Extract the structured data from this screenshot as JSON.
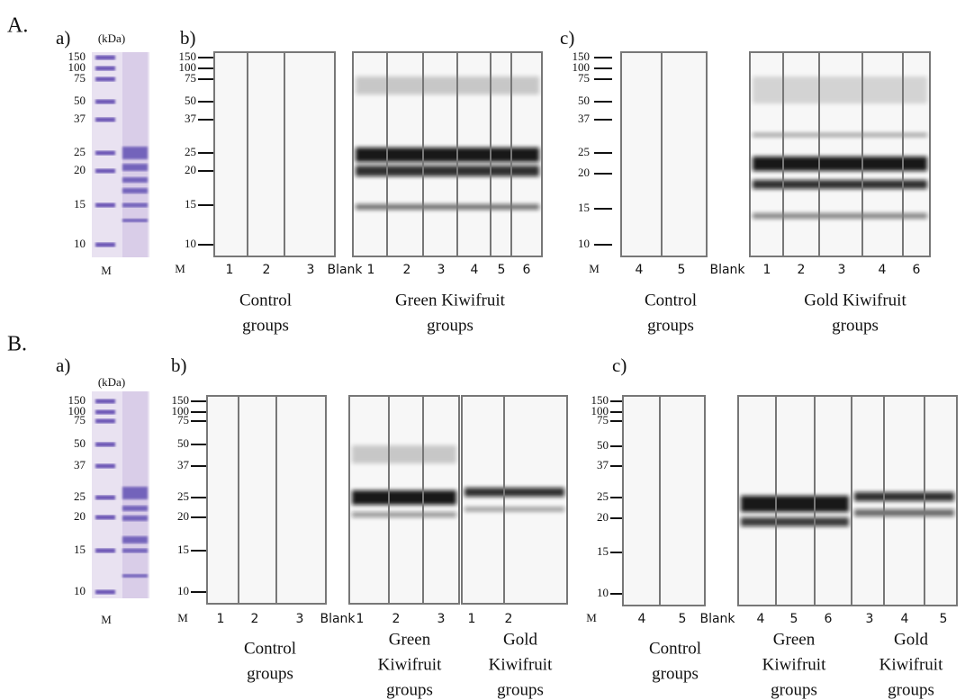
{
  "figure": {
    "parts": [
      {
        "label": "A.",
        "a": {
          "label": "a)",
          "unit": "(kDa)",
          "markers": [
            "150",
            "100",
            "75",
            "50",
            "37",
            "25",
            "20",
            "15",
            "10"
          ],
          "lane": "M"
        },
        "b": {
          "label": "b)",
          "markers": [
            "150",
            "100",
            "75",
            "50",
            "37",
            "25",
            "20",
            "15",
            "10"
          ],
          "lanes": [
            "M",
            "1",
            "2",
            "3",
            "Blank",
            "1",
            "2",
            "3",
            "4",
            "5",
            "6"
          ],
          "groups": [
            [
              "Control",
              "groups"
            ],
            [
              "Green Kiwifruit",
              "groups"
            ]
          ]
        },
        "c": {
          "label": "c)",
          "markers": [
            "150",
            "100",
            "75",
            "50",
            "37",
            "25",
            "20",
            "15",
            "10"
          ],
          "lanes": [
            "M",
            "4",
            "5",
            "Blank",
            "1",
            "2",
            "3",
            "4",
            "6"
          ],
          "groups": [
            [
              "Control",
              "groups"
            ],
            [
              "Gold Kiwifruit",
              "groups"
            ]
          ]
        }
      },
      {
        "label": "B.",
        "a": {
          "label": "a)",
          "unit": "(kDa)",
          "markers": [
            "150",
            "100",
            "75",
            "50",
            "37",
            "25",
            "20",
            "15",
            "10"
          ],
          "lane": "M"
        },
        "b": {
          "label": "b)",
          "markers": [
            "150",
            "100",
            "75",
            "50",
            "37",
            "25",
            "20",
            "15",
            "10"
          ],
          "lanes": [
            "M",
            "1",
            "2",
            "3",
            "Blank",
            "1",
            "2",
            "3",
            "1",
            "2"
          ],
          "groups": [
            [
              "Control",
              "groups"
            ],
            [
              "Green",
              "Kiwifruit",
              "groups"
            ],
            [
              "Gold",
              "Kiwifruit",
              "groups"
            ]
          ]
        },
        "c": {
          "label": "c)",
          "markers": [
            "150",
            "100",
            "75",
            "50",
            "37",
            "25",
            "20",
            "15",
            "10"
          ],
          "lanes": [
            "M",
            "4",
            "5",
            "Blank",
            "4",
            "5",
            "6",
            "3",
            "4",
            "5"
          ],
          "groups": [
            [
              "Control",
              "groups"
            ],
            [
              "Green",
              "Kiwifruit",
              "groups"
            ],
            [
              "Gold",
              "Kiwifruit",
              "groups"
            ]
          ]
        }
      }
    ]
  }
}
